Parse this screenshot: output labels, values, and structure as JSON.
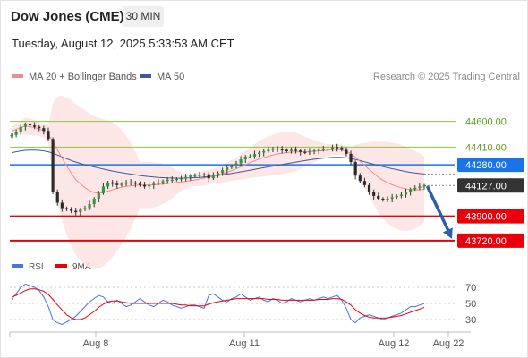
{
  "header": {
    "title": "Dow Jones (CME)",
    "timeframe": "30 MIN",
    "datetime": "Tuesday, August 12, 2025 5:33:53 AM CET",
    "credit": "Research © 2025 Trading Central"
  },
  "legend": {
    "ma20": "MA 20 + Bollinger Bands",
    "ma50": "MA 50",
    "rsi": "RSI",
    "ma9": "9MA"
  },
  "colors": {
    "ma20": "#f28b8b",
    "ma50": "#3d5a99",
    "bollinger_fill": "#fde2e2",
    "resistance": "#8cc63f",
    "pivot": "#1a73e8",
    "support": "#e8000b",
    "current": "#333333",
    "rsi": "#4a74d9",
    "ma9": "#e8000b",
    "arrow": "#2d5fa8"
  },
  "chart_data": [
    {
      "type": "candlestick",
      "x_ticks": [
        "Aug 8",
        "Aug 11",
        "Aug 12",
        "Aug 22"
      ],
      "ylim": [
        43660,
        44690
      ],
      "levels": [
        {
          "value": 44600.0,
          "label": "44600.00",
          "kind": "resistance"
        },
        {
          "value": 44410.0,
          "label": "44410.00",
          "kind": "resistance"
        },
        {
          "value": 44280.0,
          "label": "44280.00",
          "kind": "pivot"
        },
        {
          "value": 44127.0,
          "label": "44127.00",
          "kind": "current"
        },
        {
          "value": 43900.0,
          "label": "43900.00",
          "kind": "support"
        },
        {
          "value": 43720.0,
          "label": "43720.00",
          "kind": "support"
        }
      ],
      "series": [
        {
          "name": "Price",
          "values": [
            44500,
            44520,
            44560,
            44580,
            44570,
            44560,
            44550,
            44530,
            44470,
            44080,
            44000,
            43960,
            43950,
            43940,
            43930,
            43950,
            43960,
            43990,
            44030,
            44070,
            44120,
            44150,
            44140,
            44130,
            44140,
            44150,
            44150,
            44140,
            44130,
            44120,
            44130,
            44140,
            44150,
            44160,
            44170,
            44170,
            44175,
            44180,
            44190,
            44200,
            44200,
            44205,
            44210,
            44180,
            44200,
            44220,
            44240,
            44260,
            44270,
            44290,
            44320,
            44340,
            44340,
            44360,
            44370,
            44380,
            44390,
            44400,
            44395,
            44390,
            44380,
            44390,
            44385,
            44375,
            44370,
            44380,
            44385,
            44390,
            44395,
            44400,
            44410,
            44405,
            44390,
            44360,
            44300,
            44200,
            44160,
            44130,
            44080,
            44050,
            44030,
            44025,
            44030,
            44040,
            44050,
            44060,
            44080,
            44100,
            44110,
            44120,
            44127
          ]
        },
        {
          "name": "MA 20",
          "values": [
            44530,
            44540,
            44555,
            44565,
            44560,
            44555,
            44545,
            44530,
            44510,
            44450,
            44390,
            44330,
            44270,
            44220,
            44170,
            44140,
            44110,
            44090,
            44075,
            44070,
            44075,
            44085,
            44095,
            44105,
            44115,
            44120,
            44125,
            44128,
            44130,
            44130,
            44130,
            44132,
            44135,
            44138,
            44142,
            44146,
            44150,
            44154,
            44158,
            44163,
            44168,
            44175,
            44182,
            44188,
            44195,
            44205,
            44215,
            44225,
            44237,
            44250,
            44265,
            44280,
            44295,
            44310,
            44322,
            44333,
            44343,
            44352,
            44360,
            44365,
            44370,
            44373,
            44375,
            44376,
            44377,
            44378,
            44380,
            44382,
            44385,
            44388,
            44391,
            44393,
            44390,
            44380,
            44362,
            44336,
            44306,
            44276,
            44246,
            44216,
            44188,
            44166,
            44148,
            44133,
            44120,
            44110,
            44102,
            44097,
            44095,
            44096,
            44098
          ]
        },
        {
          "name": "MA 50",
          "values": [
            44370,
            44376,
            44382,
            44386,
            44388,
            44388,
            44386,
            44382,
            44376,
            44366,
            44352,
            44338,
            44324,
            44312,
            44300,
            44290,
            44280,
            44272,
            44264,
            44256,
            44248,
            44241,
            44234,
            44228,
            44222,
            44216,
            44211,
            44206,
            44201,
            44197,
            44193,
            44190,
            44187,
            44185,
            44183,
            44182,
            44181,
            44181,
            44182,
            44183,
            44185,
            44187,
            44190,
            44193,
            44197,
            44201,
            44206,
            44211,
            44216,
            44222,
            44228,
            44234,
            44240,
            44246,
            44252,
            44258,
            44264,
            44270,
            44276,
            44282,
            44288,
            44294,
            44300,
            44306,
            44311,
            44316,
            44321,
            44325,
            44329,
            44332,
            44334,
            44335,
            44334,
            44331,
            44326,
            44319,
            44311,
            44302,
            44293,
            44284,
            44275,
            44267,
            44259,
            44251,
            44244,
            44237,
            44230,
            44224,
            44219,
            44215,
            44212
          ]
        }
      ],
      "forecast_arrow": {
        "from": 44127,
        "to": 43720
      }
    },
    {
      "type": "line",
      "yticks": [
        30,
        50,
        70
      ],
      "ylim": [
        20,
        80
      ],
      "series": [
        {
          "name": "RSI",
          "values": [
            55,
            62,
            70,
            74,
            72,
            70,
            66,
            58,
            46,
            30,
            26,
            24,
            27,
            30,
            34,
            40,
            46,
            52,
            56,
            60,
            58,
            52,
            50,
            54,
            50,
            46,
            48,
            52,
            56,
            52,
            48,
            46,
            50,
            54,
            52,
            48,
            46,
            44,
            46,
            48,
            48,
            46,
            44,
            60,
            62,
            58,
            54,
            52,
            56,
            58,
            62,
            58,
            54,
            56,
            58,
            54,
            52,
            56,
            54,
            50,
            52,
            56,
            54,
            52,
            54,
            56,
            54,
            56,
            58,
            56,
            58,
            60,
            54,
            44,
            30,
            26,
            32,
            34,
            36,
            34,
            32,
            30,
            32,
            34,
            36,
            38,
            42,
            46,
            46,
            48,
            50
          ]
        },
        {
          "name": "9MA",
          "values": [
            58,
            60,
            63,
            66,
            68,
            68,
            67,
            65,
            61,
            55,
            48,
            42,
            36,
            32,
            30,
            30,
            32,
            36,
            40,
            45,
            49,
            52,
            53,
            53,
            52,
            51,
            50,
            50,
            50,
            50,
            50,
            50,
            50,
            50,
            50,
            50,
            49,
            48,
            48,
            47,
            47,
            47,
            47,
            49,
            51,
            52,
            53,
            54,
            55,
            56,
            56,
            56,
            56,
            56,
            56,
            56,
            55,
            55,
            55,
            54,
            54,
            54,
            54,
            54,
            54,
            54,
            54,
            55,
            55,
            55,
            56,
            56,
            55,
            52,
            48,
            42,
            38,
            35,
            33,
            32,
            32,
            32,
            32,
            33,
            34,
            35,
            37,
            39,
            41,
            43,
            45
          ]
        }
      ]
    }
  ]
}
